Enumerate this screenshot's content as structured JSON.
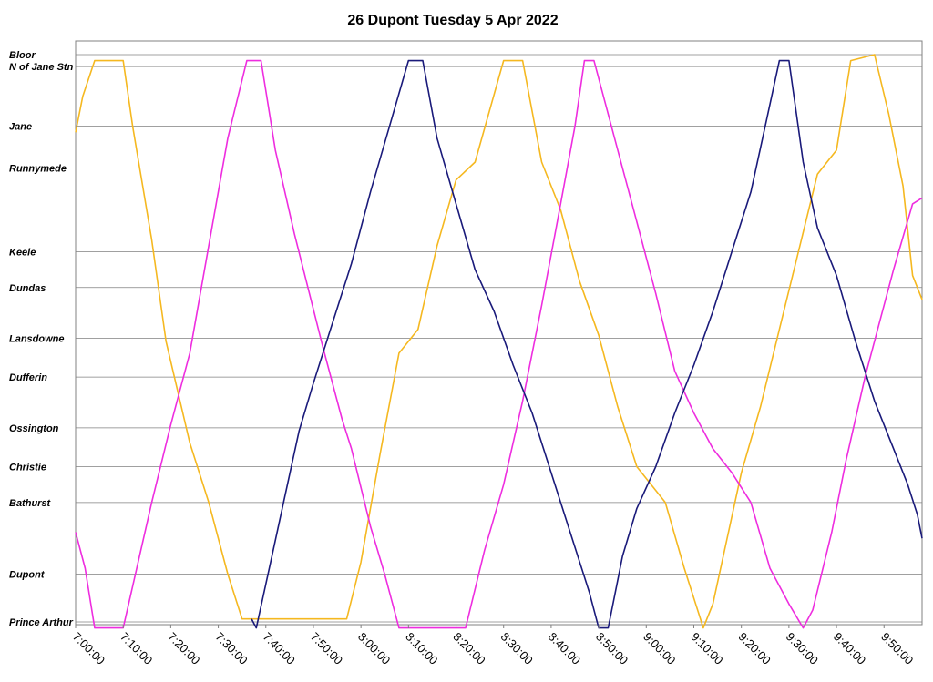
{
  "chart_data": {
    "type": "line",
    "title": "26 Dupont Tuesday 5 Apr 2022",
    "x_range": [
      "7:00:00",
      "9:58:00"
    ],
    "x_ticks": [
      "7:00:00",
      "7:10:00",
      "7:20:00",
      "7:30:00",
      "7:40:00",
      "7:50:00",
      "8:00:00",
      "8:10:00",
      "8:20:00",
      "8:30:00",
      "8:40:00",
      "8:50:00",
      "9:00:00",
      "9:10:00",
      "9:20:00",
      "9:30:00",
      "9:40:00",
      "9:50:00"
    ],
    "stops": [
      {
        "name": "Bloor",
        "pos": 0.0
      },
      {
        "name": "N of Jane Stn",
        "pos": 0.2
      },
      {
        "name": "Jane",
        "pos": 1.2
      },
      {
        "name": "Runnymede",
        "pos": 1.9
      },
      {
        "name": "Keele",
        "pos": 3.3
      },
      {
        "name": "Dundas",
        "pos": 3.9
      },
      {
        "name": "Lansdowne",
        "pos": 4.75
      },
      {
        "name": "Dufferin",
        "pos": 5.4
      },
      {
        "name": "Ossington",
        "pos": 6.25
      },
      {
        "name": "Christie",
        "pos": 6.9
      },
      {
        "name": "Bathurst",
        "pos": 7.5
      },
      {
        "name": "Dupont",
        "pos": 8.7
      },
      {
        "name": "Prince Arthur",
        "pos": 9.5
      }
    ],
    "y_range": [
      0,
      9.5
    ],
    "grid": "horizontal at each stop",
    "legend": "none",
    "series": [
      {
        "color": "#f5b820",
        "points": [
          [
            "7:00:00",
            1.3
          ],
          [
            "7:01:30",
            0.7
          ],
          [
            "7:04:00",
            0.1
          ],
          [
            "7:10:00",
            0.1
          ],
          [
            "7:12:00",
            1.2
          ],
          [
            "7:16:00",
            3.1
          ],
          [
            "7:19:00",
            4.8
          ],
          [
            "7:24:00",
            6.5
          ],
          [
            "7:28:00",
            7.5
          ],
          [
            "7:32:00",
            8.7
          ],
          [
            "7:35:00",
            9.45
          ],
          [
            "7:57:00",
            9.45
          ],
          [
            "8:00:00",
            8.5
          ],
          [
            "8:04:00",
            6.7
          ],
          [
            "8:08:00",
            5.0
          ],
          [
            "8:12:00",
            4.6
          ],
          [
            "8:16:00",
            3.2
          ],
          [
            "8:20:00",
            2.1
          ],
          [
            "8:24:00",
            1.8
          ],
          [
            "8:30:00",
            0.1
          ],
          [
            "8:34:00",
            0.1
          ],
          [
            "8:38:00",
            1.8
          ],
          [
            "8:42:00",
            2.6
          ],
          [
            "8:46:00",
            3.8
          ],
          [
            "8:50:00",
            4.7
          ],
          [
            "8:54:00",
            5.9
          ],
          [
            "8:58:00",
            6.9
          ],
          [
            "9:04:00",
            7.5
          ],
          [
            "9:08:00",
            8.6
          ],
          [
            "9:12:00",
            9.6
          ],
          [
            "9:14:00",
            9.2
          ],
          [
            "9:20:00",
            7.0
          ],
          [
            "9:24:00",
            5.9
          ],
          [
            "9:28:00",
            4.6
          ],
          [
            "9:32:00",
            3.3
          ],
          [
            "9:36:00",
            2.0
          ],
          [
            "9:40:00",
            1.6
          ],
          [
            "9:43:00",
            0.1
          ],
          [
            "9:48:00",
            0.0
          ],
          [
            "9:51:00",
            1.0
          ],
          [
            "9:54:00",
            2.2
          ],
          [
            "9:56:00",
            3.7
          ],
          [
            "9:58:00",
            4.1
          ]
        ]
      },
      {
        "color": "#ee2ddf",
        "points": [
          [
            "7:00:00",
            8.0
          ],
          [
            "7:02:00",
            8.6
          ],
          [
            "7:04:00",
            9.6
          ],
          [
            "7:10:00",
            9.6
          ],
          [
            "7:16:00",
            7.5
          ],
          [
            "7:20:00",
            6.2
          ],
          [
            "7:24:00",
            5.0
          ],
          [
            "7:28:00",
            3.2
          ],
          [
            "7:32:00",
            1.4
          ],
          [
            "7:36:00",
            0.1
          ],
          [
            "7:39:00",
            0.1
          ],
          [
            "7:42:00",
            1.6
          ],
          [
            "7:46:00",
            3.0
          ],
          [
            "7:52:00",
            4.9
          ],
          [
            "7:56:00",
            6.1
          ],
          [
            "7:58:00",
            6.6
          ],
          [
            "8:02:00",
            7.9
          ],
          [
            "8:05:00",
            8.7
          ],
          [
            "8:08:00",
            9.6
          ],
          [
            "8:22:00",
            9.6
          ],
          [
            "8:26:00",
            8.3
          ],
          [
            "8:30:00",
            7.2
          ],
          [
            "8:34:00",
            5.8
          ],
          [
            "8:38:00",
            4.2
          ],
          [
            "8:42:00",
            2.5
          ],
          [
            "8:45:00",
            1.2
          ],
          [
            "8:47:00",
            0.1
          ],
          [
            "8:49:00",
            0.1
          ],
          [
            "8:54:00",
            1.6
          ],
          [
            "8:58:00",
            2.8
          ],
          [
            "9:02:00",
            4.0
          ],
          [
            "9:06:00",
            5.3
          ],
          [
            "9:10:00",
            6.0
          ],
          [
            "9:14:00",
            6.6
          ],
          [
            "9:18:00",
            7.0
          ],
          [
            "9:22:00",
            7.5
          ],
          [
            "9:26:00",
            8.6
          ],
          [
            "9:30:00",
            9.2
          ],
          [
            "9:33:00",
            9.6
          ],
          [
            "9:35:00",
            9.3
          ],
          [
            "9:39:00",
            8.0
          ],
          [
            "9:42:00",
            6.8
          ],
          [
            "9:46:00",
            5.4
          ],
          [
            "9:49:00",
            4.5
          ],
          [
            "9:52:00",
            3.6
          ],
          [
            "9:56:00",
            2.5
          ],
          [
            "9:58:00",
            2.4
          ]
        ]
      },
      {
        "color": "#1a1a7a",
        "points": [
          [
            "7:37:00",
            9.45
          ],
          [
            "7:38:00",
            9.6
          ],
          [
            "7:41:00",
            8.5
          ],
          [
            "7:44:00",
            7.4
          ],
          [
            "7:47:00",
            6.3
          ],
          [
            "7:50:00",
            5.5
          ],
          [
            "7:54:00",
            4.5
          ],
          [
            "7:58:00",
            3.5
          ],
          [
            "8:02:00",
            2.3
          ],
          [
            "8:06:00",
            1.2
          ],
          [
            "8:10:00",
            0.1
          ],
          [
            "8:13:00",
            0.1
          ],
          [
            "8:16:00",
            1.4
          ],
          [
            "8:20:00",
            2.5
          ],
          [
            "8:24:00",
            3.6
          ],
          [
            "8:28:00",
            4.3
          ],
          [
            "8:32:00",
            5.2
          ],
          [
            "8:36:00",
            6.0
          ],
          [
            "8:40:00",
            7.0
          ],
          [
            "8:44:00",
            8.0
          ],
          [
            "8:48:00",
            9.0
          ],
          [
            "8:50:00",
            9.6
          ],
          [
            "8:52:00",
            9.6
          ],
          [
            "8:55:00",
            8.4
          ],
          [
            "8:58:00",
            7.6
          ],
          [
            "9:02:00",
            6.9
          ],
          [
            "9:06:00",
            6.0
          ],
          [
            "9:10:00",
            5.2
          ],
          [
            "9:14:00",
            4.3
          ],
          [
            "9:18:00",
            3.3
          ],
          [
            "9:22:00",
            2.3
          ],
          [
            "9:25:00",
            1.2
          ],
          [
            "9:28:00",
            0.1
          ],
          [
            "9:30:00",
            0.1
          ],
          [
            "9:33:00",
            1.8
          ],
          [
            "9:36:00",
            2.9
          ],
          [
            "9:40:00",
            3.7
          ],
          [
            "9:44:00",
            4.8
          ],
          [
            "9:48:00",
            5.8
          ],
          [
            "9:52:00",
            6.6
          ],
          [
            "9:55:00",
            7.2
          ],
          [
            "9:57:00",
            7.7
          ],
          [
            "9:58:00",
            8.1
          ]
        ]
      }
    ]
  }
}
